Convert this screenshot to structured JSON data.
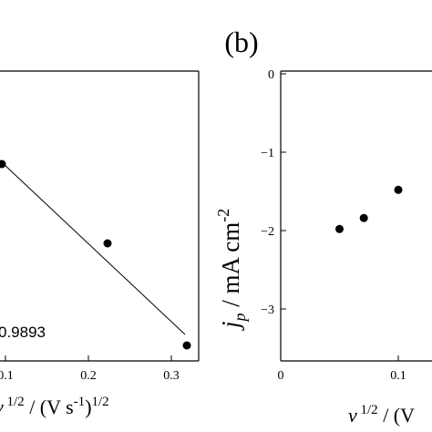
{
  "panel_label": "(b)",
  "chart_data": [
    {
      "type": "scatter",
      "title": "",
      "xlabel_main": "ν",
      "xlabel_rest_prefix": " 1/2",
      "xlabel_rest_mid": " / (V s",
      "xlabel_rest_exp": "-1",
      "xlabel_rest_close": ")",
      "xlabel_rest_exp2": "1/2",
      "ylabel": "",
      "x_ticks": [
        "0.1",
        "0.2",
        "0.3"
      ],
      "x_tick_values": [
        0.1,
        0.2,
        0.3
      ],
      "xlim": [
        0.05,
        0.33
      ],
      "ylim": [
        -2.6,
        -1.0
      ],
      "series": [
        {
          "x": [
            0.1,
            0.2236,
            0.3162
          ],
          "y": [
            -1.48,
            -1.84,
            -2.48
          ]
        }
      ],
      "fit_line": {
        "x": [
          0.1,
          0.3162
        ],
        "y": [
          -1.48,
          -2.36
        ]
      },
      "annotation": "0.9893",
      "annotation_prefix_visible": "",
      "grid": false
    },
    {
      "type": "scatter",
      "title": "",
      "xlabel_main": "ν",
      "xlabel_rest_prefix": " 1/2",
      "xlabel_rest_mid": " / (V",
      "ylabel_main": "j",
      "ylabel_sub": "p",
      "ylabel_rest": " / mA cm",
      "ylabel_exp": "-2",
      "x_ticks": [
        "0",
        "0.1"
      ],
      "x_tick_values": [
        0,
        0.1
      ],
      "y_ticks": [
        "0",
        "−1",
        "−2",
        "−3"
      ],
      "y_tick_values": [
        0,
        -1,
        -2,
        -3
      ],
      "xlim": [
        0,
        0.13
      ],
      "ylim": [
        -3.65,
        0
      ],
      "series": [
        {
          "x": [
            0.05,
            0.0707,
            0.1
          ],
          "y": [
            -1.98,
            -1.84,
            -1.48
          ]
        }
      ],
      "grid": false
    }
  ]
}
